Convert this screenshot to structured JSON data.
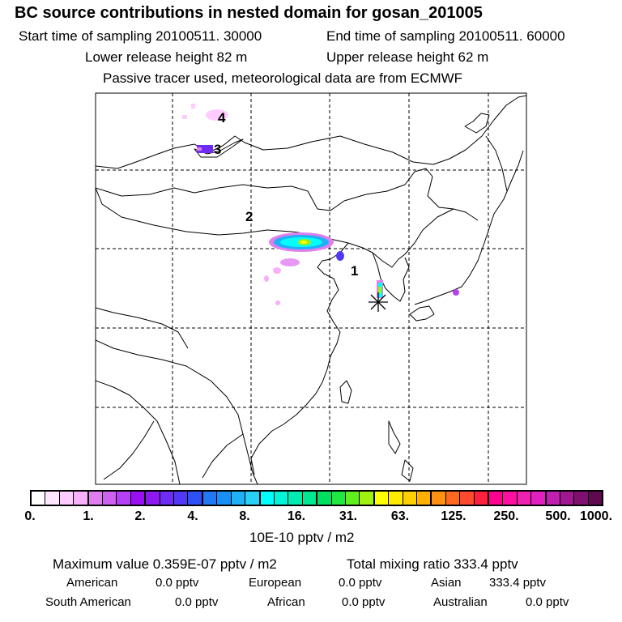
{
  "header": {
    "title": "BC  source contributions in nested domain for gosan_201005",
    "start_label": "Start time of sampling 20100511. 30000",
    "end_label": "End time of sampling 20100511. 60000",
    "lower_label": "Lower release height   82 m",
    "upper_label": "Upper release height   62 m",
    "tracer_line": "Passive tracer used, meteorological data are from ECMWF"
  },
  "map": {
    "region_labels": [
      "1",
      "2",
      "3",
      "4"
    ],
    "receptor": "gosan",
    "colors": {
      "border": "#000000",
      "grid": "#000000",
      "star": "#000000"
    }
  },
  "colorbar": {
    "unit": "10E-10 pptv / m2",
    "tick_labels": [
      "0.",
      "1.",
      "2.",
      "4.",
      "8.",
      "16.",
      "31.",
      "63.",
      "125.",
      "250.",
      "500.",
      "1000."
    ],
    "colors": [
      "#ffffff",
      "#ffe6ff",
      "#ffccff",
      "#f8b0fb",
      "#e07ef0",
      "#d060f0",
      "#b640f5",
      "#9a10f5",
      "#8c1af0",
      "#6e2cf5",
      "#5038f5",
      "#3050f7",
      "#2078f5",
      "#1890f5",
      "#20b0f5",
      "#28d0f5",
      "#00ffff",
      "#00f5d8",
      "#00ecb0",
      "#00e890",
      "#00e060",
      "#20e840",
      "#60f020",
      "#a0f010",
      "#ffff00",
      "#ffea00",
      "#ffd000",
      "#ffb000",
      "#ff9010",
      "#ff6a20",
      "#ff4a30",
      "#ff2040",
      "#ff0090",
      "#ff10a0",
      "#f020b0",
      "#e020c0",
      "#c020b0",
      "#a01890",
      "#801070",
      "#600850"
    ]
  },
  "stats": {
    "max_line": "Maximum value  0.359E-07 pptv / m2",
    "total_line": "Total mixing ratio      333.4 pptv",
    "american_label": "American",
    "american_value": "0.0 pptv",
    "european_label": "European",
    "european_value": "0.0 pptv",
    "asian_label": "Asian",
    "asian_value": "333.4 pptv",
    "south_american_label": "South American",
    "south_american_value": "0.0 pptv",
    "african_label": "African",
    "african_value": "0.0 pptv",
    "australian_label": "Australian",
    "australian_value": "0.0 pptv"
  }
}
